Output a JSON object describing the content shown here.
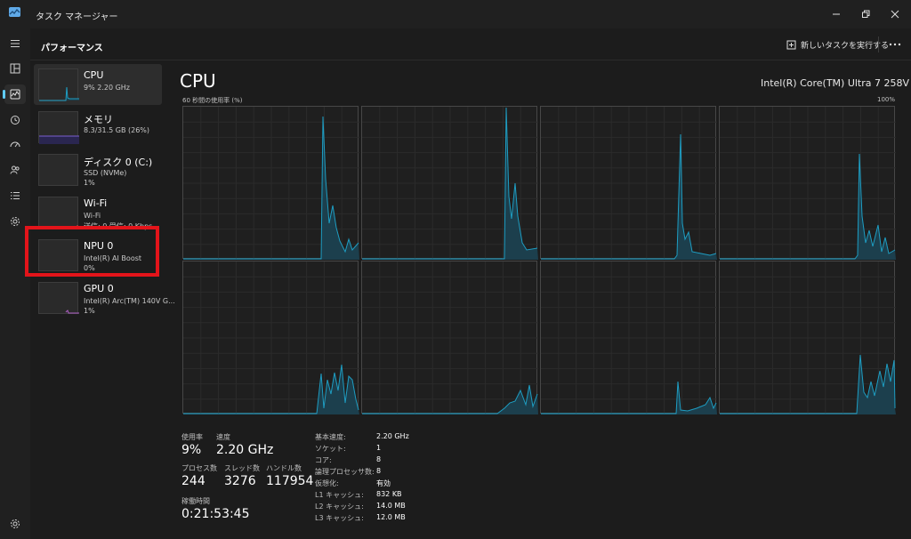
{
  "window": {
    "title": "タスク マネージャー"
  },
  "header": {
    "title": "パフォーマンス",
    "new_task_label": "新しいタスクを実行する"
  },
  "devices": [
    {
      "name": "CPU",
      "sub1": "9% 2.20 GHz",
      "sub2": "",
      "sub3": "",
      "selected": true
    },
    {
      "name": "メモリ",
      "sub1": "8.3/31.5 GB (26%)",
      "sub2": "",
      "sub3": ""
    },
    {
      "name": "ディスク 0 (C:)",
      "sub1": "SSD (NVMe)",
      "sub2": "1%",
      "sub3": ""
    },
    {
      "name": "Wi-Fi",
      "sub1": "Wi-Fi",
      "sub2": "送信: 0 受信: 0 Kbps",
      "sub3": ""
    },
    {
      "name": "NPU 0",
      "sub1": "Intel(R) AI Boost",
      "sub2": "0%",
      "sub3": ""
    },
    {
      "name": "GPU 0",
      "sub1": "Intel(R) Arc(TM) 140V G...",
      "sub2": "1%",
      "sub3": ""
    }
  ],
  "cpu": {
    "title": "CPU",
    "model": "Intel(R) Core(TM) Ultra 7 258V",
    "graph_caption": "60 秒間の使用率 (%)",
    "graph_max": "100%",
    "stats": {
      "utilization_label": "使用率",
      "utilization": "9%",
      "speed_label": "速度",
      "speed": "2.20 GHz",
      "processes_label": "プロセス数",
      "processes": "244",
      "threads_label": "スレッド数",
      "threads": "3276",
      "handles_label": "ハンドル数",
      "handles": "117954",
      "uptime_label": "稼働時間",
      "uptime": "0:21:53:45"
    },
    "specs": [
      {
        "label": "基本速度:",
        "value": "2.20 GHz"
      },
      {
        "label": "ソケット:",
        "value": "1"
      },
      {
        "label": "コア:",
        "value": "8"
      },
      {
        "label": "論理プロセッサ数:",
        "value": "8"
      },
      {
        "label": "仮想化:",
        "value": "有効"
      },
      {
        "label": "L1 キャッシュ:",
        "value": "832 KB"
      },
      {
        "label": "L2 キャッシュ:",
        "value": "14.0 MB"
      },
      {
        "label": "L3 キャッシュ:",
        "value": "12.0 MB"
      }
    ]
  },
  "colors": {
    "accent": "#60cdff",
    "graph_line": "#1e9dc2",
    "graph_fill": "#1c3f4d",
    "highlight": "#e3141a"
  },
  "icons": [
    "app-icon",
    "hamburger-icon",
    "processes-icon",
    "performance-icon",
    "app-history-icon",
    "startup-apps-icon",
    "users-icon",
    "details-icon",
    "services-icon",
    "settings-icon",
    "run-task-icon",
    "more-icon",
    "minimize-icon",
    "restore-icon",
    "close-icon"
  ]
}
